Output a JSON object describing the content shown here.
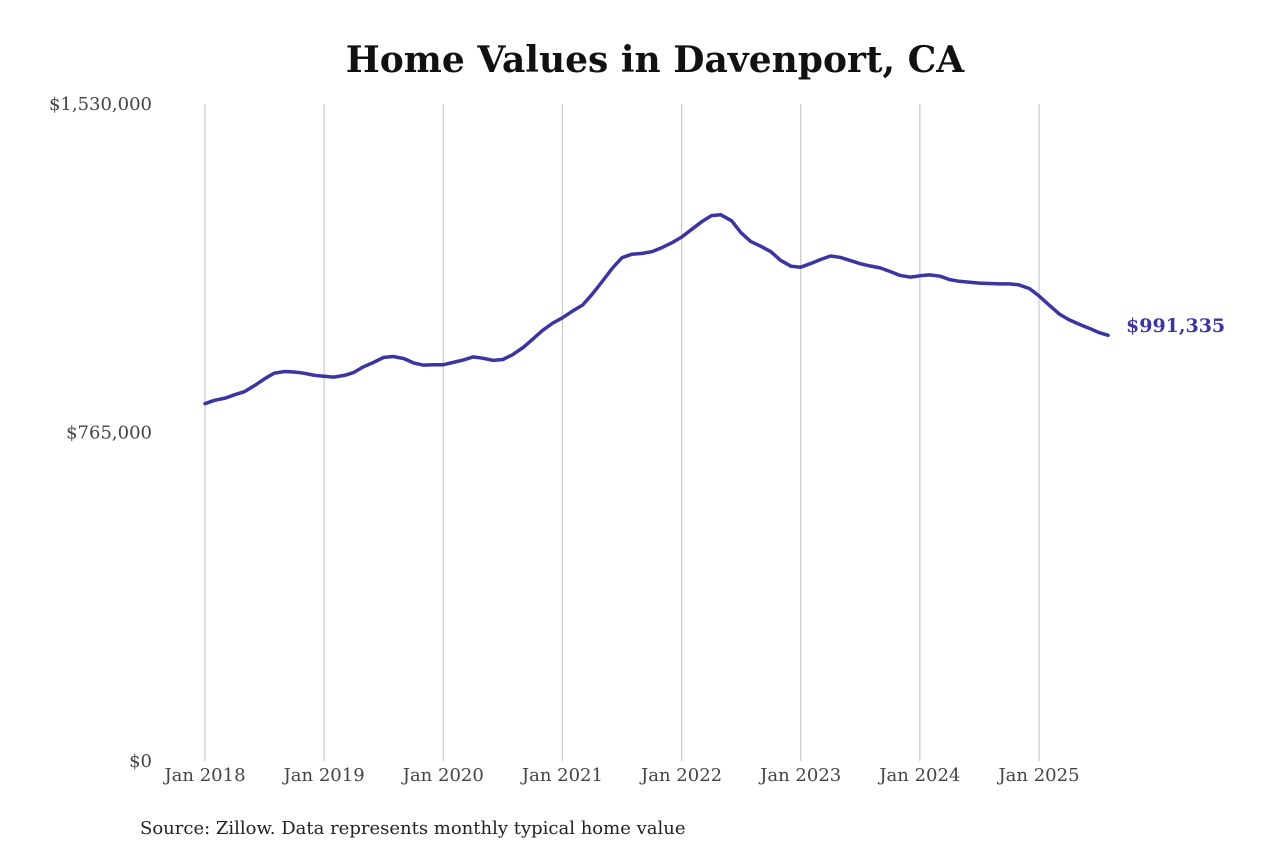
{
  "chart_data": {
    "type": "line",
    "title": "Home Values in Davenport, CA",
    "source": "Source: Zillow. Data represents monthly typical home value",
    "xlabel": "",
    "ylabel": "",
    "ylim": [
      0,
      1530000
    ],
    "y_ticks": [
      {
        "value": 0,
        "label": "$0"
      },
      {
        "value": 765000,
        "label": "$765,000"
      },
      {
        "value": 1530000,
        "label": "$1,530,000"
      }
    ],
    "x_ticks": [
      {
        "value": 2018.0,
        "label": "Jan 2018"
      },
      {
        "value": 2019.0,
        "label": "Jan 2019"
      },
      {
        "value": 2020.0,
        "label": "Jan 2020"
      },
      {
        "value": 2021.0,
        "label": "Jan 2021"
      },
      {
        "value": 2022.0,
        "label": "Jan 2022"
      },
      {
        "value": 2023.0,
        "label": "Jan 2023"
      },
      {
        "value": 2024.0,
        "label": "Jan 2024"
      },
      {
        "value": 2025.0,
        "label": "Jan 2025"
      }
    ],
    "grid": "vertical",
    "line_color": "#3a35a0",
    "end_label": "$991,335",
    "series": [
      {
        "x": [
          2018.0,
          2018.08,
          2018.17,
          2018.25,
          2018.33,
          2018.42,
          2018.5,
          2018.58,
          2018.67,
          2018.75,
          2018.83,
          2018.92,
          2019.0,
          2019.08,
          2019.17,
          2019.25,
          2019.33,
          2019.42,
          2019.5,
          2019.58,
          2019.67,
          2019.75,
          2019.83,
          2019.92,
          2020.0,
          2020.08,
          2020.17,
          2020.25,
          2020.33,
          2020.42,
          2020.5,
          2020.58,
          2020.67,
          2020.75,
          2020.83,
          2020.92,
          2021.0,
          2021.08,
          2021.17,
          2021.25,
          2021.33,
          2021.42,
          2021.5,
          2021.58,
          2021.67,
          2021.75,
          2021.83,
          2021.92,
          2022.0,
          2022.08,
          2022.17,
          2022.25,
          2022.33,
          2022.42,
          2022.5,
          2022.58,
          2022.67,
          2022.75,
          2022.83,
          2022.92,
          2023.0,
          2023.08,
          2023.17,
          2023.25,
          2023.33,
          2023.42,
          2023.5,
          2023.58,
          2023.67,
          2023.75,
          2023.83,
          2023.92,
          2024.0,
          2024.08,
          2024.17,
          2024.25,
          2024.33,
          2024.42,
          2024.5,
          2024.58,
          2024.67,
          2024.75,
          2024.83,
          2024.92,
          2025.0,
          2025.08,
          2025.17,
          2025.25,
          2025.33,
          2025.42,
          2025.5,
          2025.58
        ],
        "y": [
          832000,
          840000,
          845000,
          853000,
          860000,
          875000,
          890000,
          903000,
          907000,
          906000,
          903000,
          898000,
          896000,
          894000,
          898000,
          905000,
          918000,
          929000,
          940000,
          942000,
          937000,
          927000,
          922000,
          923000,
          923000,
          928000,
          934000,
          941000,
          938000,
          933000,
          935000,
          946000,
          963000,
          982000,
          1002000,
          1020000,
          1032000,
          1047000,
          1062000,
          1087000,
          1115000,
          1148000,
          1172000,
          1180000,
          1182000,
          1186000,
          1195000,
          1207000,
          1220000,
          1237000,
          1256000,
          1270000,
          1272000,
          1258000,
          1230000,
          1210000,
          1198000,
          1186000,
          1166000,
          1152000,
          1150000,
          1158000,
          1168000,
          1176000,
          1173000,
          1165000,
          1158000,
          1153000,
          1148000,
          1140000,
          1131000,
          1127000,
          1130000,
          1132000,
          1129000,
          1121000,
          1117000,
          1115000,
          1113000,
          1112000,
          1111000,
          1111000,
          1109000,
          1100000,
          1083000,
          1063000,
          1041000,
          1028000,
          1018000,
          1008000,
          998000,
          991335
        ]
      }
    ]
  }
}
